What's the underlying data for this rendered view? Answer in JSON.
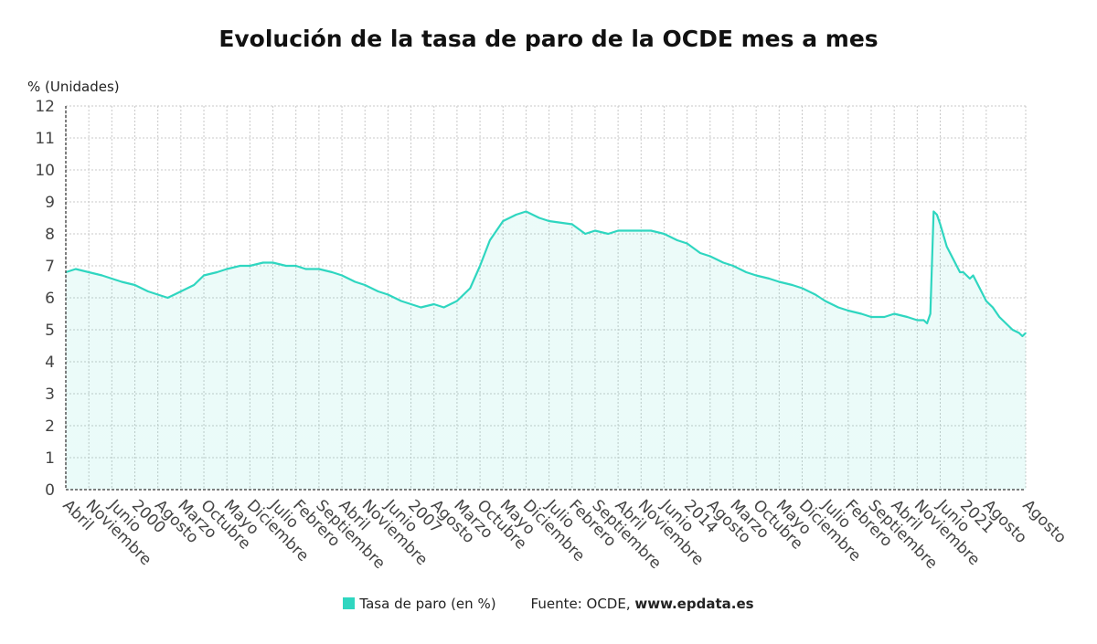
{
  "chart_data": {
    "type": "area",
    "title": "Evolución de la tasa de paro de la OCDE mes a mes",
    "ylabel": "% (Unidades)",
    "ylim": [
      0,
      12
    ],
    "yticks": [
      0,
      1,
      2,
      3,
      4,
      5,
      6,
      7,
      8,
      9,
      10,
      11,
      12
    ],
    "grid": true,
    "color": "#2fd6c0",
    "x_start": "1998-04",
    "x_end": "2022-08",
    "x_tick_labels": [
      {
        "date": "1998-04",
        "label": "Abril"
      },
      {
        "date": "1998-11",
        "label": "Noviembre"
      },
      {
        "date": "1999-06",
        "label": "Junio"
      },
      {
        "date": "2000-01",
        "label": "2000"
      },
      {
        "date": "2000-08",
        "label": "Agosto"
      },
      {
        "date": "2001-03",
        "label": "Marzo"
      },
      {
        "date": "2001-10",
        "label": "Octubre"
      },
      {
        "date": "2002-05",
        "label": "Mayo"
      },
      {
        "date": "2002-12",
        "label": "Diciembre"
      },
      {
        "date": "2003-07",
        "label": "Julio"
      },
      {
        "date": "2004-02",
        "label": "Febrero"
      },
      {
        "date": "2004-09",
        "label": "Septiembre"
      },
      {
        "date": "2005-04",
        "label": "Abril"
      },
      {
        "date": "2005-11",
        "label": "Noviembre"
      },
      {
        "date": "2006-06",
        "label": "Junio"
      },
      {
        "date": "2007-01",
        "label": "2007"
      },
      {
        "date": "2007-08",
        "label": "Agosto"
      },
      {
        "date": "2008-03",
        "label": "Marzo"
      },
      {
        "date": "2008-10",
        "label": "Octubre"
      },
      {
        "date": "2009-05",
        "label": "Mayo"
      },
      {
        "date": "2009-12",
        "label": "Diciembre"
      },
      {
        "date": "2010-07",
        "label": "Julio"
      },
      {
        "date": "2011-02",
        "label": "Febrero"
      },
      {
        "date": "2011-09",
        "label": "Septiembre"
      },
      {
        "date": "2012-04",
        "label": "Abril"
      },
      {
        "date": "2012-11",
        "label": "Noviembre"
      },
      {
        "date": "2013-06",
        "label": "Junio"
      },
      {
        "date": "2014-01",
        "label": "2014"
      },
      {
        "date": "2014-08",
        "label": "Agosto"
      },
      {
        "date": "2015-03",
        "label": "Marzo"
      },
      {
        "date": "2015-10",
        "label": "Octubre"
      },
      {
        "date": "2016-05",
        "label": "Mayo"
      },
      {
        "date": "2016-12",
        "label": "Diciembre"
      },
      {
        "date": "2017-07",
        "label": "Julio"
      },
      {
        "date": "2018-02",
        "label": "Febrero"
      },
      {
        "date": "2018-09",
        "label": "Septiembre"
      },
      {
        "date": "2019-04",
        "label": "Abril"
      },
      {
        "date": "2019-11",
        "label": "Noviembre"
      },
      {
        "date": "2020-06",
        "label": "Junio"
      },
      {
        "date": "2021-01",
        "label": "2021"
      },
      {
        "date": "2021-08",
        "label": "Agosto"
      },
      {
        "date": "2022-08",
        "label": "Agosto"
      }
    ],
    "series": [
      {
        "name": "Tasa de paro (en %)",
        "points": [
          [
            "1998-04",
            6.8
          ],
          [
            "1998-07",
            6.9
          ],
          [
            "1998-11",
            6.8
          ],
          [
            "1999-03",
            6.7
          ],
          [
            "1999-06",
            6.6
          ],
          [
            "1999-09",
            6.5
          ],
          [
            "2000-01",
            6.4
          ],
          [
            "2000-05",
            6.2
          ],
          [
            "2000-08",
            6.1
          ],
          [
            "2000-11",
            6.0
          ],
          [
            "2001-03",
            6.2
          ],
          [
            "2001-07",
            6.4
          ],
          [
            "2001-10",
            6.7
          ],
          [
            "2002-02",
            6.8
          ],
          [
            "2002-05",
            6.9
          ],
          [
            "2002-09",
            7.0
          ],
          [
            "2002-12",
            7.0
          ],
          [
            "2003-04",
            7.1
          ],
          [
            "2003-07",
            7.1
          ],
          [
            "2003-11",
            7.0
          ],
          [
            "2004-02",
            7.0
          ],
          [
            "2004-05",
            6.9
          ],
          [
            "2004-09",
            6.9
          ],
          [
            "2005-01",
            6.8
          ],
          [
            "2005-04",
            6.7
          ],
          [
            "2005-08",
            6.5
          ],
          [
            "2005-11",
            6.4
          ],
          [
            "2006-03",
            6.2
          ],
          [
            "2006-06",
            6.1
          ],
          [
            "2006-10",
            5.9
          ],
          [
            "2007-01",
            5.8
          ],
          [
            "2007-04",
            5.7
          ],
          [
            "2007-08",
            5.8
          ],
          [
            "2007-11",
            5.7
          ],
          [
            "2008-03",
            5.9
          ],
          [
            "2008-07",
            6.3
          ],
          [
            "2008-10",
            7.0
          ],
          [
            "2009-01",
            7.8
          ],
          [
            "2009-05",
            8.4
          ],
          [
            "2009-09",
            8.6
          ],
          [
            "2009-12",
            8.7
          ],
          [
            "2010-04",
            8.5
          ],
          [
            "2010-07",
            8.4
          ],
          [
            "2011-02",
            8.3
          ],
          [
            "2011-06",
            8.0
          ],
          [
            "2011-09",
            8.1
          ],
          [
            "2012-01",
            8.0
          ],
          [
            "2012-04",
            8.1
          ],
          [
            "2012-08",
            8.1
          ],
          [
            "2012-11",
            8.1
          ],
          [
            "2013-02",
            8.1
          ],
          [
            "2013-06",
            8.0
          ],
          [
            "2013-10",
            7.8
          ],
          [
            "2014-01",
            7.7
          ],
          [
            "2014-05",
            7.4
          ],
          [
            "2014-08",
            7.3
          ],
          [
            "2014-12",
            7.1
          ],
          [
            "2015-03",
            7.0
          ],
          [
            "2015-07",
            6.8
          ],
          [
            "2015-10",
            6.7
          ],
          [
            "2016-02",
            6.6
          ],
          [
            "2016-05",
            6.5
          ],
          [
            "2016-09",
            6.4
          ],
          [
            "2016-12",
            6.3
          ],
          [
            "2017-04",
            6.1
          ],
          [
            "2017-07",
            5.9
          ],
          [
            "2017-11",
            5.7
          ],
          [
            "2018-02",
            5.6
          ],
          [
            "2018-06",
            5.5
          ],
          [
            "2018-09",
            5.4
          ],
          [
            "2019-01",
            5.4
          ],
          [
            "2019-04",
            5.5
          ],
          [
            "2019-08",
            5.4
          ],
          [
            "2019-11",
            5.3
          ],
          [
            "2020-01",
            5.3
          ],
          [
            "2020-02",
            5.2
          ],
          [
            "2020-03",
            5.5
          ],
          [
            "2020-04",
            8.7
          ],
          [
            "2020-05",
            8.6
          ],
          [
            "2020-06",
            8.3
          ],
          [
            "2020-08",
            7.6
          ],
          [
            "2020-10",
            7.2
          ],
          [
            "2020-12",
            6.8
          ],
          [
            "2021-01",
            6.8
          ],
          [
            "2021-03",
            6.6
          ],
          [
            "2021-04",
            6.7
          ],
          [
            "2021-06",
            6.3
          ],
          [
            "2021-08",
            5.9
          ],
          [
            "2021-10",
            5.7
          ],
          [
            "2021-12",
            5.4
          ],
          [
            "2022-02",
            5.2
          ],
          [
            "2022-04",
            5.0
          ],
          [
            "2022-06",
            4.9
          ],
          [
            "2022-07",
            4.8
          ],
          [
            "2022-08",
            4.9
          ]
        ]
      }
    ]
  },
  "legend": {
    "series_label": "Tasa de paro (en %)",
    "source_prefix": "Fuente: OCDE, ",
    "source_web": "www.epdata.es"
  }
}
